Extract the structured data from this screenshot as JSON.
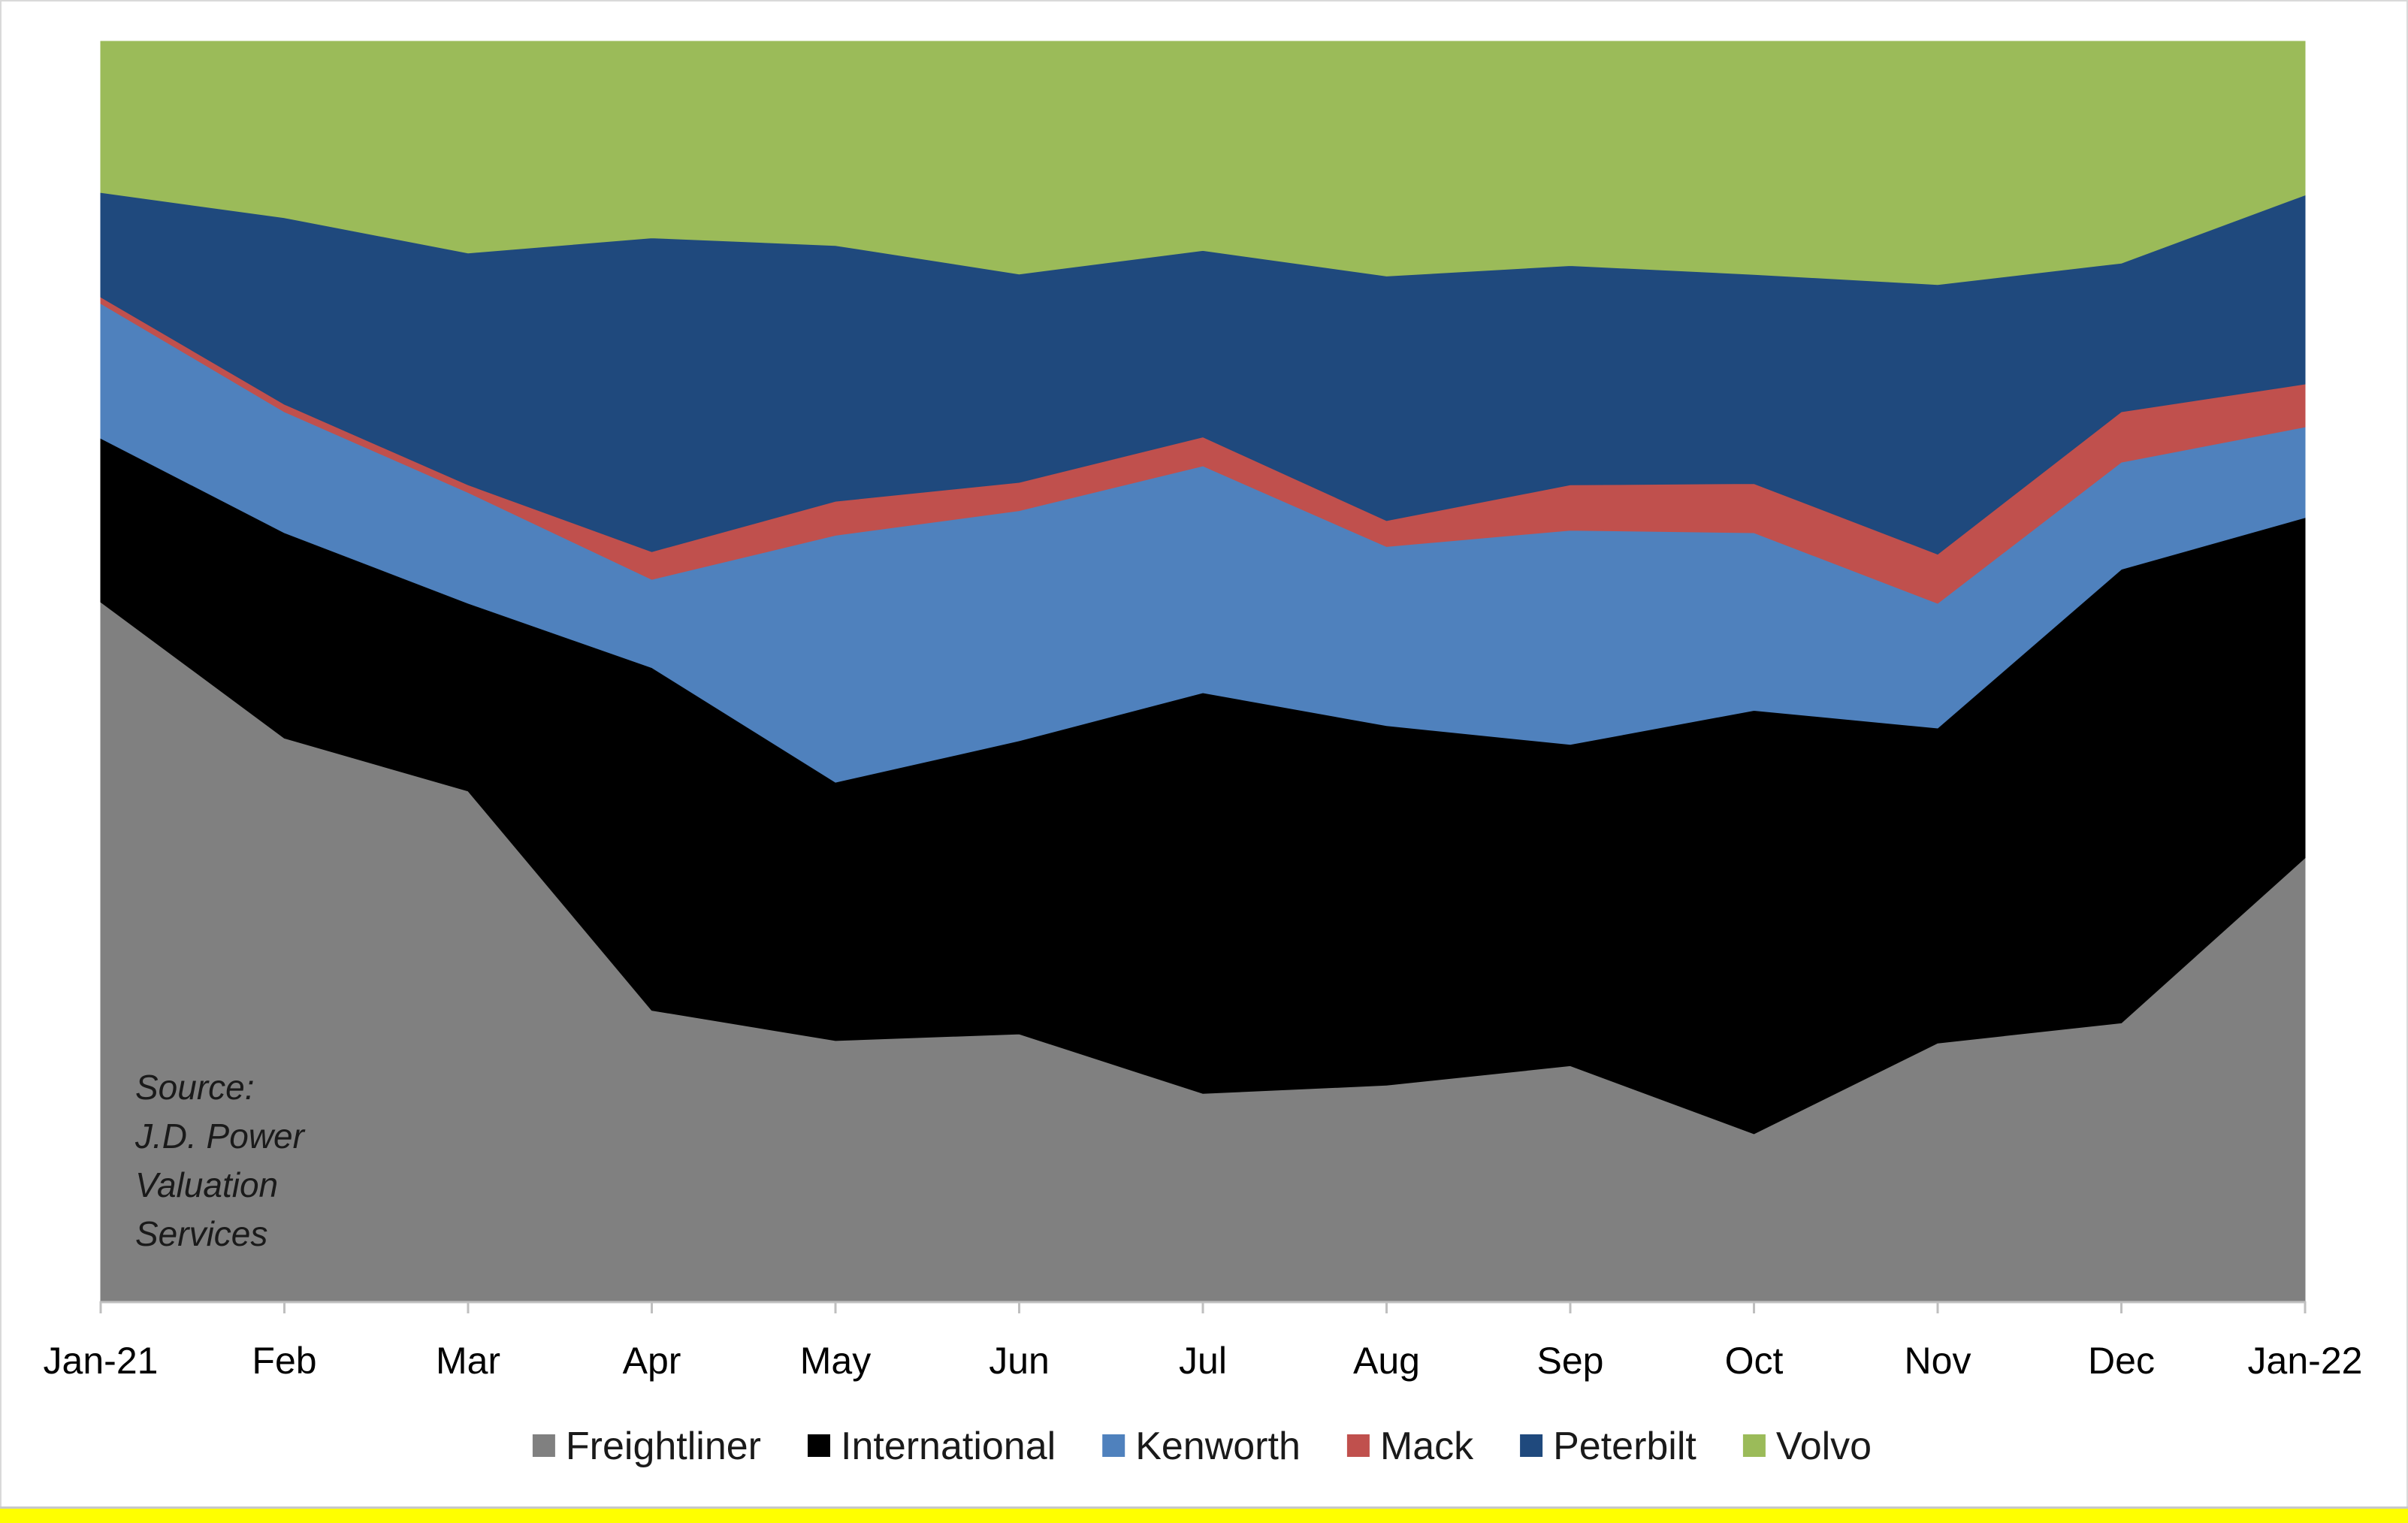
{
  "chart_data": {
    "type": "area",
    "stacked": true,
    "normalized": true,
    "categories": [
      "Jan-21",
      "Feb",
      "Mar",
      "Apr",
      "May",
      "Jun",
      "Jul",
      "Aug",
      "Sep",
      "Oct",
      "Nov",
      "Dec",
      "Jan-22"
    ],
    "ylim": [
      0,
      1
    ],
    "grid": false,
    "legend_position": "bottom",
    "series": [
      {
        "name": "Freightliner",
        "color": "#808080",
        "values": [
          0.555,
          0.447,
          0.405,
          0.231,
          0.207,
          0.208,
          0.165,
          0.175,
          0.187,
          0.133,
          0.205,
          0.221,
          0.352
        ]
      },
      {
        "name": "International",
        "color": "#000000",
        "values": [
          0.13,
          0.163,
          0.149,
          0.272,
          0.205,
          0.228,
          0.318,
          0.291,
          0.255,
          0.336,
          0.25,
          0.36,
          0.27
        ]
      },
      {
        "name": "Kenworth",
        "color": "#4f81bd",
        "values": [
          0.107,
          0.096,
          0.088,
          0.07,
          0.196,
          0.179,
          0.18,
          0.145,
          0.17,
          0.141,
          0.099,
          0.085,
          0.072
        ]
      },
      {
        "name": "Mack",
        "color": "#c0504d",
        "values": [
          0.005,
          0.006,
          0.006,
          0.022,
          0.027,
          0.022,
          0.023,
          0.021,
          0.036,
          0.039,
          0.039,
          0.04,
          0.034
        ]
      },
      {
        "name": "Peterbilt",
        "color": "#1f497d",
        "values": [
          0.083,
          0.148,
          0.184,
          0.249,
          0.203,
          0.162,
          0.148,
          0.198,
          0.174,
          0.166,
          0.214,
          0.118,
          0.15
        ]
      },
      {
        "name": "Volvo",
        "color": "#9bbb59",
        "values": [
          0.12,
          0.14,
          0.168,
          0.156,
          0.162,
          0.181,
          0.166,
          0.19,
          0.178,
          0.185,
          0.193,
          0.176,
          0.122
        ]
      }
    ],
    "annotation": [
      "Source:",
      "J.D. Power",
      "Valuation",
      "Services"
    ]
  }
}
